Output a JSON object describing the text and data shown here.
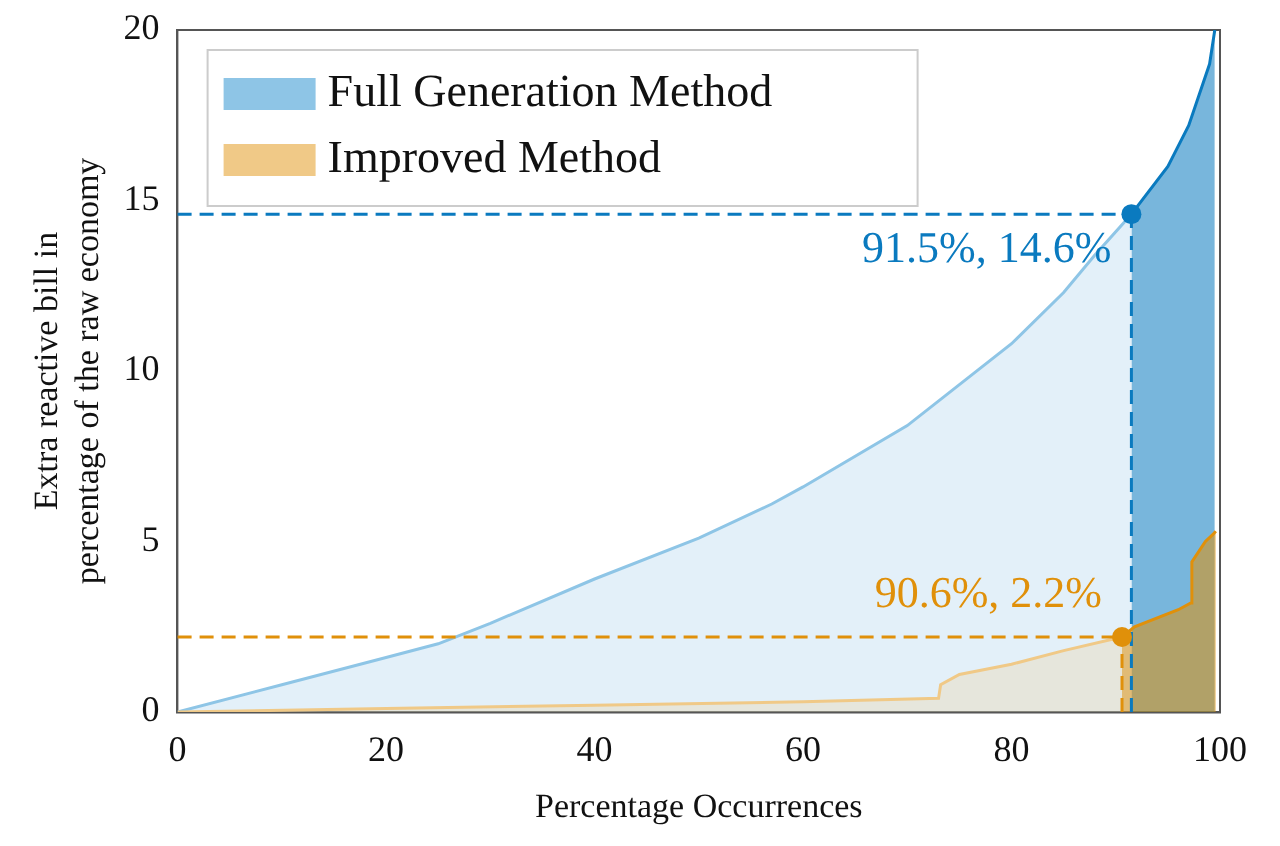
{
  "chart_data": {
    "type": "area",
    "xlabel": "Percentage Occurrences",
    "ylabel": "Extra reactive bill in\npercentage of the raw economy",
    "xlim": [
      0,
      100
    ],
    "ylim": [
      0,
      20
    ],
    "xticks": [
      0,
      20,
      40,
      60,
      80,
      100
    ],
    "yticks": [
      0,
      5,
      10,
      15,
      20
    ],
    "grid": false,
    "legend": "top left",
    "series": [
      {
        "name": "Full Generation Method",
        "color": "#8ec5e6",
        "x": [
          0,
          10,
          20,
          25,
          30,
          40,
          50,
          57,
          60,
          70,
          80,
          85,
          88,
          91.5
        ],
        "values": [
          0,
          0.8,
          1.6,
          2.0,
          2.6,
          3.9,
          5.1,
          6.1,
          6.6,
          8.4,
          10.8,
          12.3,
          13.4,
          14.6
        ]
      },
      {
        "color": "#0a7abf",
        "x": [
          91.5,
          95,
          97,
          99,
          99.5
        ],
        "values": [
          14.6,
          16,
          17.2,
          19,
          20
        ]
      },
      {
        "name": "Improved Method",
        "color": "#f0c987",
        "x": [
          0,
          20,
          40,
          60,
          73,
          73.2,
          75,
          80,
          85,
          90.6
        ],
        "values": [
          0,
          0.1,
          0.2,
          0.3,
          0.4,
          0.8,
          1.1,
          1.4,
          1.8,
          2.2
        ]
      },
      {
        "color": "#e0900a",
        "x": [
          90.6,
          91.8,
          96,
          97.2,
          97.3,
          98.6,
          99.3,
          99.6
        ],
        "values": [
          2.2,
          2.5,
          3.0,
          3.2,
          4.4,
          5.0,
          5.2,
          5.3
        ]
      }
    ],
    "ref_lines": [
      {
        "axis": "y",
        "value": 14.6,
        "color": "#0a7abf",
        "line_style": "dashed"
      },
      {
        "axis": "x",
        "value": 91.5,
        "color": "#0a7abf",
        "line_style": "dashed"
      },
      {
        "axis": "y",
        "value": 2.2,
        "color": "#e0900a",
        "line_style": "dashed"
      },
      {
        "axis": "x",
        "value": 90.6,
        "color": "#e0900a",
        "line_style": "dashed"
      }
    ],
    "annotations": [
      {
        "text": "91.5%, 14.6%",
        "x": 91.5,
        "y": 14.6
      },
      {
        "text": "90.6%, 2.2%",
        "x": 90.6,
        "y": 2.2
      }
    ]
  }
}
